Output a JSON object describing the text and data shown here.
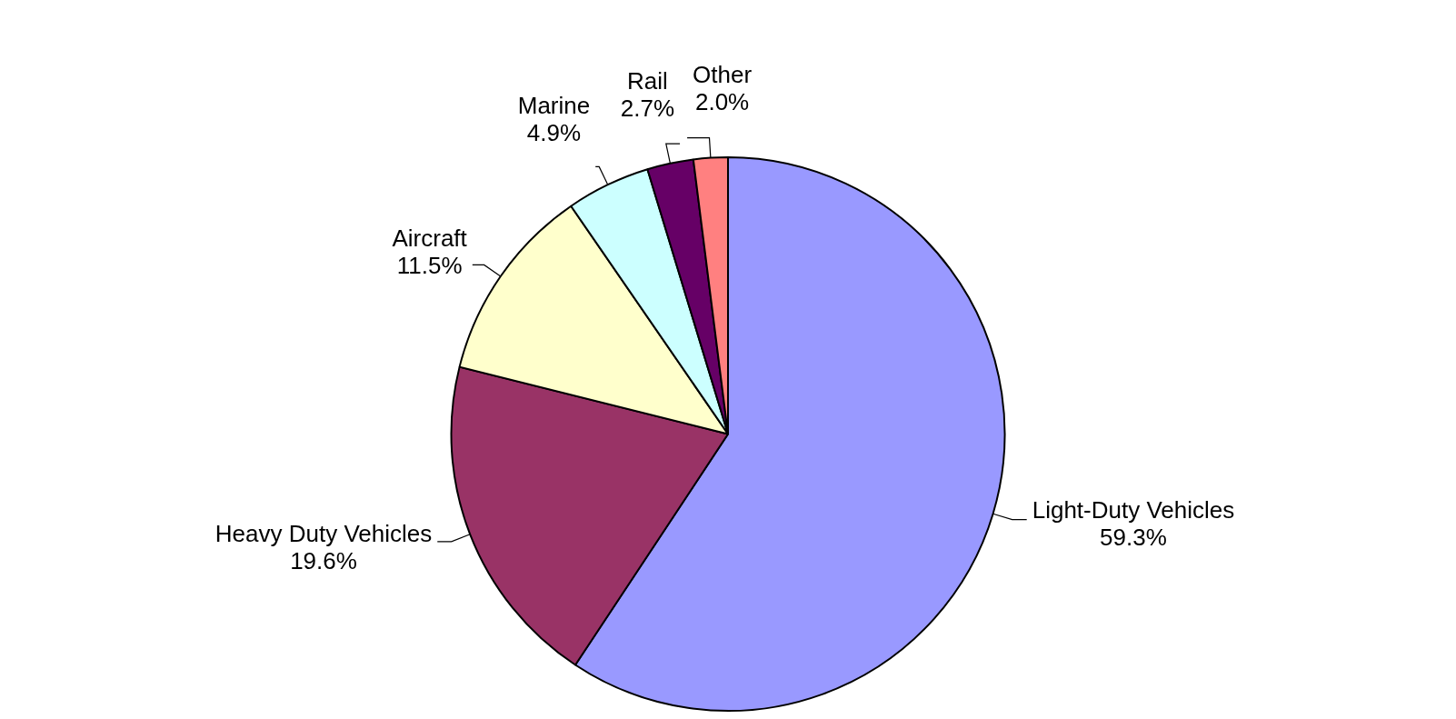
{
  "chart_data": {
    "type": "pie",
    "categories": [
      "Light-Duty Vehicles",
      "Heavy Duty Vehicles",
      "Aircraft",
      "Marine",
      "Rail",
      "Other"
    ],
    "values": [
      59.3,
      19.6,
      11.5,
      4.9,
      2.7,
      2.0
    ],
    "value_labels": [
      "59.3%",
      "19.6%",
      "11.5%",
      "4.9%",
      "2.7%",
      "2.0%"
    ],
    "colors": [
      "#9999ff",
      "#993366",
      "#ffffcc",
      "#ccffff",
      "#660066",
      "#ff8080"
    ],
    "legend": false
  }
}
